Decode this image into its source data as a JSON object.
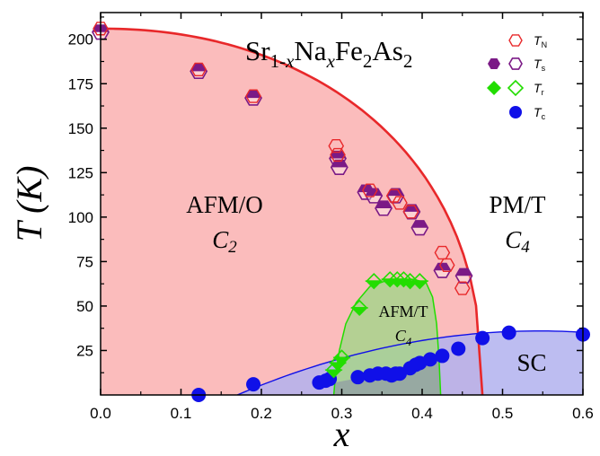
{
  "chart_data": {
    "type": "scatter",
    "title": "Sr1-xNaxFe2As2",
    "title_parts": [
      "Sr",
      "1-",
      "x",
      "Na",
      "x",
      "Fe",
      "2",
      "As",
      "2"
    ],
    "xlabel": "x",
    "ylabel": "T (K)",
    "xlim": [
      0.0,
      0.6
    ],
    "ylim": [
      0,
      215
    ],
    "xticks": [
      "0.0",
      "0.1",
      "0.2",
      "0.3",
      "0.4",
      "0.5",
      "0.6"
    ],
    "yticks": [
      "25",
      "50",
      "75",
      "100",
      "125",
      "150",
      "175",
      "200"
    ],
    "legend_position": "top-right",
    "grid": false,
    "colors": {
      "TN": "#e8282a",
      "Ts": "#7b1a86",
      "Tr": "#22dd00",
      "Tc": "#1010e8",
      "afm_o_fill": "#fbbcbc",
      "afm_t_fill": "#a7d48c",
      "sc_fill": "#b2b2ee"
    },
    "legend": [
      {
        "label": "T",
        "sub": "N",
        "series": "TN"
      },
      {
        "label": "T",
        "sub": "s",
        "series": "Ts"
      },
      {
        "label": "T",
        "sub": "r",
        "series": "Tr"
      },
      {
        "label": "T",
        "sub": "c",
        "series": "Tc"
      }
    ],
    "regions": [
      {
        "label": "AFM/O",
        "sub": "C2"
      },
      {
        "label": "PM/T",
        "sub": "C4"
      },
      {
        "label": "AFM/T",
        "sub": "C4"
      },
      {
        "label": "SC",
        "sub": ""
      }
    ],
    "series": [
      {
        "name": "TN",
        "marker": "hexagon-open",
        "x": [
          0.0,
          0.122,
          0.19,
          0.293,
          0.295,
          0.335,
          0.365,
          0.372,
          0.386,
          0.425,
          0.431,
          0.45
        ],
        "y": [
          206,
          183,
          168,
          140,
          135,
          115,
          112,
          108,
          103,
          80,
          73,
          60
        ]
      },
      {
        "name": "Ts",
        "marker": "hexagon-halffilled",
        "x": [
          0.0,
          0.122,
          0.19,
          0.295,
          0.297,
          0.33,
          0.34,
          0.352,
          0.367,
          0.387,
          0.397,
          0.425,
          0.452
        ],
        "y": [
          204,
          182,
          167,
          133,
          128,
          114,
          112,
          105,
          112,
          103,
          94,
          70,
          67
        ]
      },
      {
        "name": "Tr",
        "marker": "diamond-halffilled",
        "x": [
          0.29,
          0.295,
          0.3,
          0.322,
          0.34,
          0.36,
          0.369,
          0.377,
          0.385,
          0.397
        ],
        "y": [
          14,
          18,
          21,
          49,
          64,
          65,
          65,
          65,
          64,
          64
        ]
      },
      {
        "name": "Tc",
        "marker": "circle-filled",
        "x": [
          0.122,
          0.19,
          0.272,
          0.28,
          0.285,
          0.32,
          0.335,
          0.345,
          0.355,
          0.362,
          0.367,
          0.372,
          0.385,
          0.392,
          0.397,
          0.41,
          0.425,
          0.445,
          0.475,
          0.508,
          0.6
        ],
        "y": [
          0,
          6,
          7,
          8,
          9,
          10,
          11,
          12,
          12,
          11,
          12,
          12,
          15,
          17,
          18,
          20,
          22,
          26,
          32,
          35,
          34
        ]
      }
    ]
  }
}
